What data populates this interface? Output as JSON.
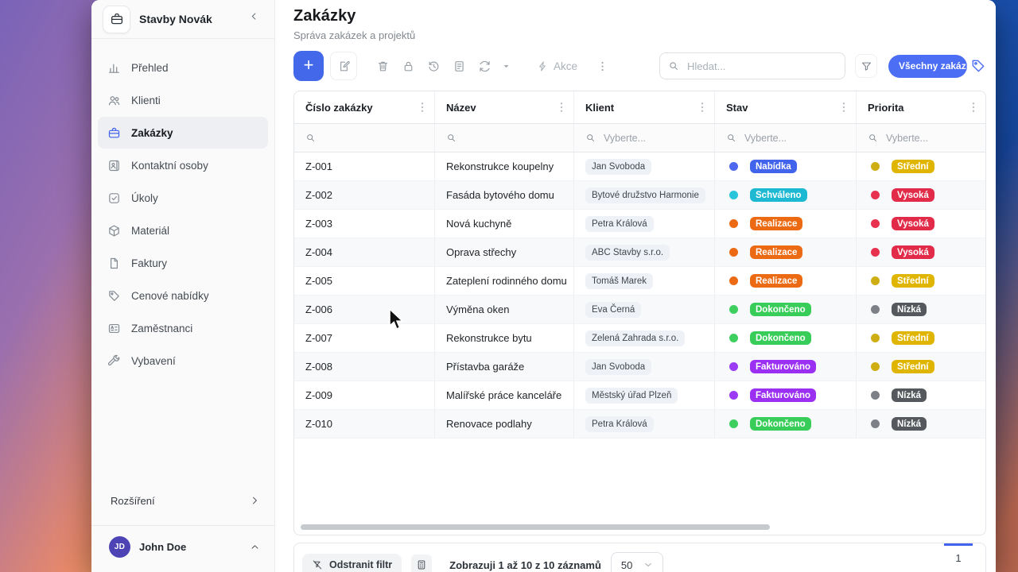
{
  "theme": {
    "accent": "#4c6ef5"
  },
  "sidebar": {
    "brand": "Stavby Novák",
    "items": [
      {
        "icon": "chart-bar",
        "label": "Přehled",
        "active": false
      },
      {
        "icon": "users",
        "label": "Klienti",
        "active": false
      },
      {
        "icon": "briefcase",
        "label": "Zakázky",
        "active": true
      },
      {
        "icon": "contact-card",
        "label": "Kontaktní osoby",
        "active": false
      },
      {
        "icon": "check-square",
        "label": "Úkoly",
        "active": false
      },
      {
        "icon": "cube",
        "label": "Materiál",
        "active": false
      },
      {
        "icon": "file",
        "label": "Faktury",
        "active": false
      },
      {
        "icon": "tag",
        "label": "Cenové nabídky",
        "active": false
      },
      {
        "icon": "id-card",
        "label": "Zaměstnanci",
        "active": false
      },
      {
        "icon": "wrench",
        "label": "Vybavení",
        "active": false
      }
    ],
    "rozsireni": "Rozšíření",
    "user": {
      "initials": "JD",
      "name": "John Doe"
    }
  },
  "header": {
    "title": "Zakázky",
    "subtitle": "Správa zakázek a projektů"
  },
  "toolbar": {
    "akce_label": "Akce",
    "search_placeholder": "Hledat...",
    "view_button": "Všechny zakázky"
  },
  "table": {
    "columns": [
      "Číslo zakázky",
      "Název",
      "Klient",
      "Stav",
      "Priorita"
    ],
    "filter_placeholders": [
      "",
      "",
      "Vyberte...",
      "Vyberte...",
      "Vyberte..."
    ],
    "statuses": {
      "nabidka": {
        "label": "Nabídka",
        "color": "#4263eb",
        "dot": "#4e68f0"
      },
      "schvaleno": {
        "label": "Schváleno",
        "color": "#1db9d2",
        "dot": "#29c5db"
      },
      "realizace": {
        "label": "Realizace",
        "color": "#ec6a13",
        "dot": "#ec6a13"
      },
      "dokonceno": {
        "label": "Dokončeno",
        "color": "#37cd58",
        "dot": "#3ecf5f"
      },
      "fakturovano": {
        "label": "Fakturováno",
        "color": "#9b30f2",
        "dot": "#9b3bf5"
      }
    },
    "priorities": {
      "stredni": {
        "label": "Střední",
        "color": "#e0b500",
        "dot": "#cfae14"
      },
      "vysoka": {
        "label": "Vysoká",
        "color": "#e12b48",
        "dot": "#e8314e"
      },
      "nizka": {
        "label": "Nízká",
        "color": "#55595e",
        "dot": "#7d8187"
      }
    },
    "rows": [
      {
        "id": "Z-001",
        "name": "Rekonstrukce koupelny",
        "client": "Jan Svoboda",
        "status": "nabidka",
        "priority": "stredni"
      },
      {
        "id": "Z-002",
        "name": "Fasáda bytového domu",
        "client": "Bytové družstvo Harmonie",
        "status": "schvaleno",
        "priority": "vysoka"
      },
      {
        "id": "Z-003",
        "name": "Nová kuchyně",
        "client": "Petra Králová",
        "status": "realizace",
        "priority": "vysoka"
      },
      {
        "id": "Z-004",
        "name": "Oprava střechy",
        "client": "ABC Stavby s.r.o.",
        "status": "realizace",
        "priority": "vysoka"
      },
      {
        "id": "Z-005",
        "name": "Zateplení rodinného domu",
        "client": "Tomáš Marek",
        "status": "realizace",
        "priority": "stredni"
      },
      {
        "id": "Z-006",
        "name": "Výměna oken",
        "client": "Eva Černá",
        "status": "dokonceno",
        "priority": "nizka"
      },
      {
        "id": "Z-007",
        "name": "Rekonstrukce bytu",
        "client": "Zelená Zahrada s.r.o.",
        "status": "dokonceno",
        "priority": "stredni"
      },
      {
        "id": "Z-008",
        "name": "Přístavba garáže",
        "client": "Jan Svoboda",
        "status": "fakturovano",
        "priority": "stredni"
      },
      {
        "id": "Z-009",
        "name": "Malířské práce kanceláře",
        "client": "Městský úřad Plzeň",
        "status": "fakturovano",
        "priority": "nizka"
      },
      {
        "id": "Z-010",
        "name": "Renovace podlahy",
        "client": "Petra Králová",
        "status": "dokonceno",
        "priority": "nizka"
      }
    ]
  },
  "statusbar": {
    "remove_filter": "Odstranit filtr",
    "records_text": "Zobrazuji 1 až 10 z 10 záznamů",
    "page_size": "50",
    "page": "1"
  }
}
